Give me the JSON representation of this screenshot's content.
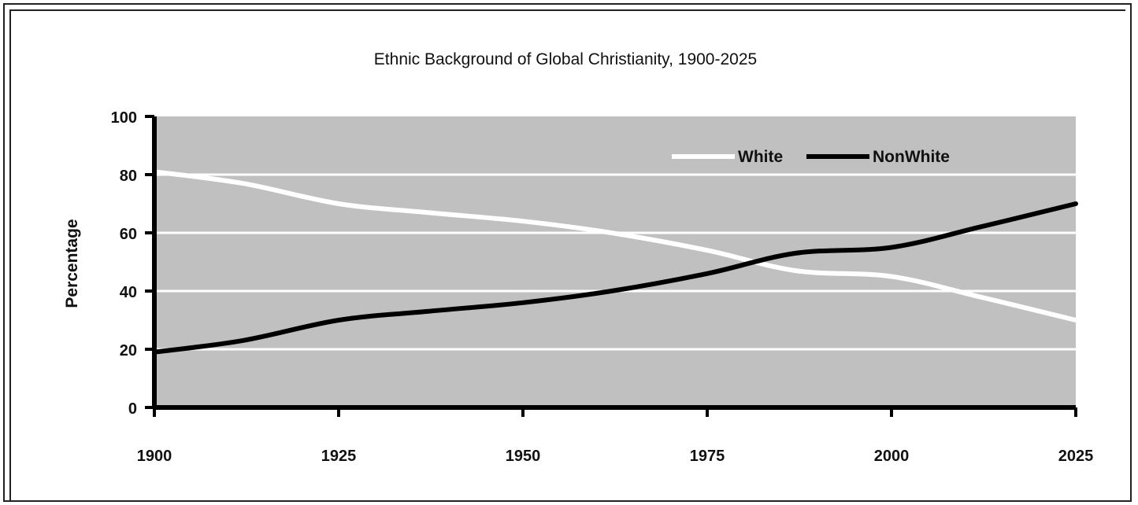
{
  "chart_data": {
    "type": "line",
    "title": "Ethnic Background of Global Christianity, 1900-2025",
    "xlabel": "",
    "ylabel": "Percentage",
    "x": [
      1900,
      1912,
      1925,
      1937,
      1950,
      1962,
      1975,
      1987,
      2000,
      2012,
      2025
    ],
    "xticks": [
      "1900",
      "1925",
      "1950",
      "1975",
      "2000",
      "2025"
    ],
    "yticks": [
      "0",
      "20",
      "40",
      "60",
      "80",
      "100"
    ],
    "xlim": [
      1900,
      2025
    ],
    "ylim": [
      0,
      100
    ],
    "grid": true,
    "legend_position": "top-right",
    "series": [
      {
        "name": "White",
        "color": "#ffffff",
        "values": [
          81,
          77,
          70,
          67,
          64,
          60,
          54,
          47,
          45,
          38,
          30
        ]
      },
      {
        "name": "NonWhite",
        "color": "#000000",
        "values": [
          19,
          23,
          30,
          33,
          36,
          40,
          46,
          53,
          55,
          62,
          70
        ]
      }
    ],
    "colors": {
      "plot_background": "#c0c0c0",
      "gridline": "#ffffff"
    }
  }
}
